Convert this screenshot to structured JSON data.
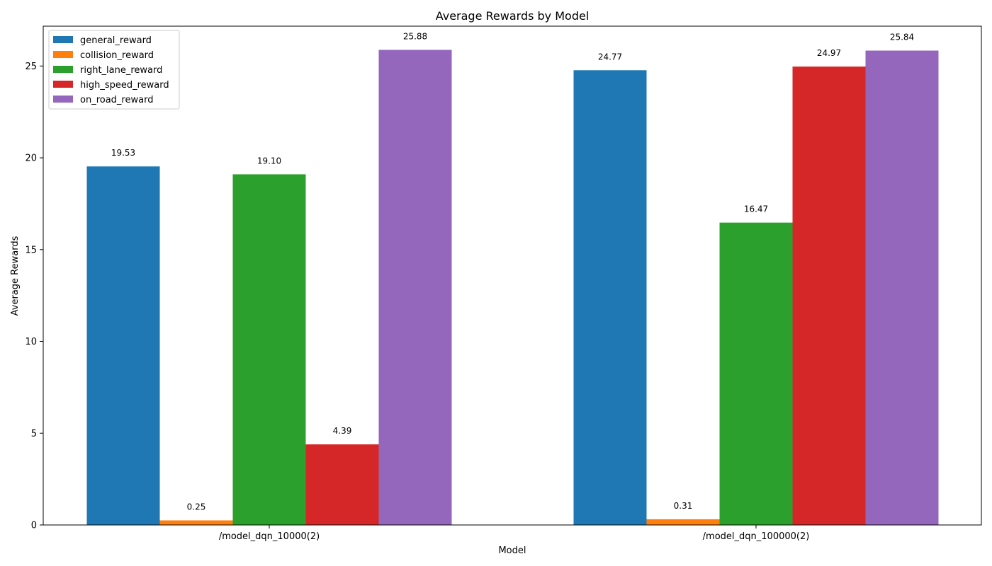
{
  "chart_data": {
    "type": "bar",
    "title": "Average Rewards by Model",
    "xlabel": "Model",
    "ylabel": "Average Rewards",
    "categories": [
      "/model_dqn_10000(2)",
      "/model_dqn_100000(2)"
    ],
    "series": [
      {
        "name": "general_reward",
        "color": "#1f77b4",
        "values": [
          19.53,
          24.77
        ],
        "labels": [
          "19.53",
          "24.77"
        ]
      },
      {
        "name": "collision_reward",
        "color": "#ff7f0e",
        "values": [
          0.25,
          0.31
        ],
        "labels": [
          "0.25",
          "0.31"
        ]
      },
      {
        "name": "right_lane_reward",
        "color": "#2ca02c",
        "values": [
          19.1,
          16.47
        ],
        "labels": [
          "19.10",
          "16.47"
        ]
      },
      {
        "name": "high_speed_reward",
        "color": "#d62728",
        "values": [
          4.39,
          24.97
        ],
        "labels": [
          "4.39",
          "24.97"
        ]
      },
      {
        "name": "on_road_reward",
        "color": "#9467bd",
        "values": [
          25.88,
          25.84
        ],
        "labels": [
          "25.88",
          "25.84"
        ]
      }
    ],
    "ylim": [
      0,
      27.17
    ],
    "yticks": [
      0,
      5,
      10,
      15,
      20,
      25
    ],
    "legend": "top-left",
    "grid": false
  }
}
